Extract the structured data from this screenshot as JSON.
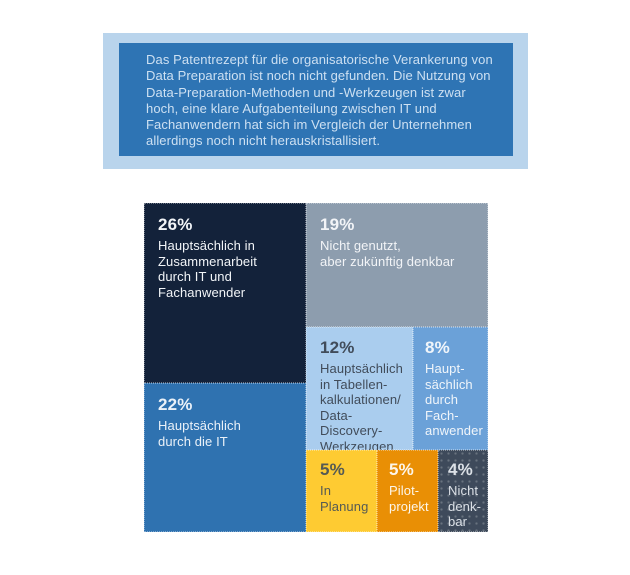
{
  "info_box": {
    "text": "Das Patentrezept für die organisatorische Verankerung von\nData Preparation ist noch nicht gefunden. Die Nutzung von\nData-Preparation-Methoden und -Werkzeugen ist zwar\nhoch, eine klare Aufgabenteilung zwischen IT und\nFachanwendern hat sich im Vergleich der Unternehmen\nallerdings noch nicht herauskristallisiert.",
    "outer_color": "#b9d4ec",
    "inner_color": "#2e74b4",
    "text_color": "#cde0f2"
  },
  "chart_data": {
    "type": "treemap",
    "title": "",
    "unit": "percent",
    "items": [
      {
        "value": "26%",
        "pct": 26,
        "label": "Hauptsächlich in\nZusammenarbeit\ndurch IT und\nFachanwender",
        "color": "#13223a",
        "text_color": "#f2f5f8"
      },
      {
        "value": "22%",
        "pct": 22,
        "label": "Hauptsächlich\ndurch die IT",
        "color": "#2f72b0",
        "text_color": "#eaf1f8"
      },
      {
        "value": "19%",
        "pct": 19,
        "label": "Nicht genutzt,\naber zukünftig denkbar",
        "color": "#8d9dae",
        "text_color": "#f2f4f7"
      },
      {
        "value": "12%",
        "pct": 12,
        "label": "Hauptsächlich\nin Tabellen-\nkalkulationen/\nData-Discovery-\nWerkzeugen",
        "color": "#aacdee",
        "text_color": "#414c5a"
      },
      {
        "value": "8%",
        "pct": 8,
        "label": "Haupt-\nsächlich\ndurch\nFach-\nanwender",
        "color": "#6ba1d8",
        "text_color": "#f0f5fa"
      },
      {
        "value": "5%",
        "pct": 5,
        "label": "In\nPlanung",
        "color": "#fecb32",
        "text_color": "#555a54"
      },
      {
        "value": "5%",
        "pct": 5,
        "label": "Pilot-\nprojekt",
        "color": "#e98f05",
        "text_color": "#fdf6ea"
      },
      {
        "value": "4%",
        "pct": 4,
        "label": "Nicht\ndenk-\nbar",
        "color": "#3e4a5b",
        "text_color": "#dbe0e6",
        "pattern": "dots"
      }
    ]
  }
}
